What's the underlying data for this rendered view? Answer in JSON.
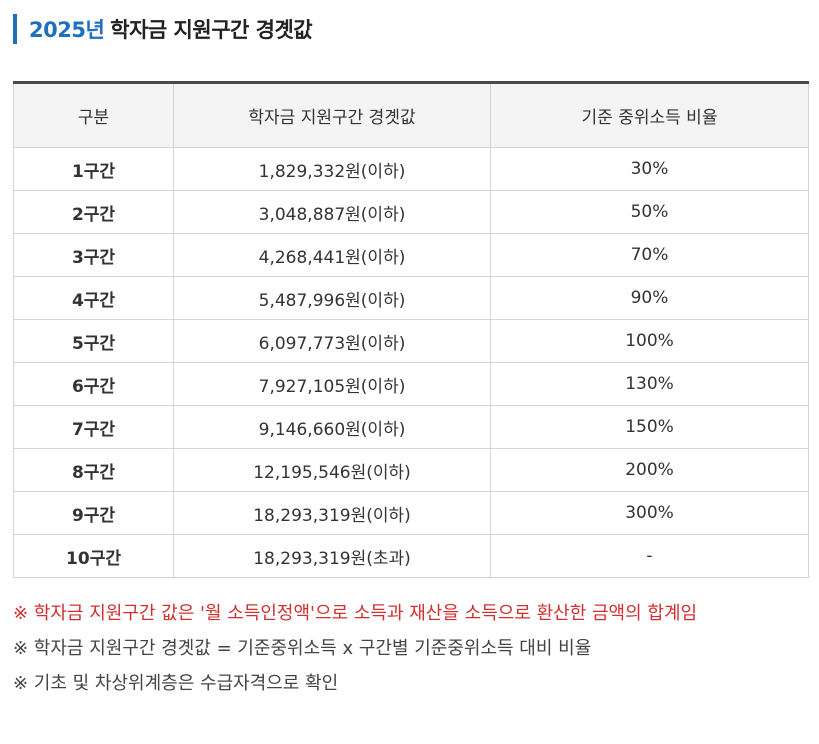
{
  "title": {
    "year": "2025년",
    "text": "학자금 지원구간 경곗값"
  },
  "table": {
    "headers": [
      "구분",
      "학자금 지원구간 경곗값",
      "기준 중위소득 비율"
    ],
    "rows": [
      {
        "segment": "1구간",
        "amount": "1,829,332원(이하)",
        "ratio": "30%"
      },
      {
        "segment": "2구간",
        "amount": "3,048,887원(이하)",
        "ratio": "50%"
      },
      {
        "segment": "3구간",
        "amount": "4,268,441원(이하)",
        "ratio": "70%"
      },
      {
        "segment": "4구간",
        "amount": "5,487,996원(이하)",
        "ratio": "90%"
      },
      {
        "segment": "5구간",
        "amount": "6,097,773원(이하)",
        "ratio": "100%"
      },
      {
        "segment": "6구간",
        "amount": "7,927,105원(이하)",
        "ratio": "130%"
      },
      {
        "segment": "7구간",
        "amount": "9,146,660원(이하)",
        "ratio": "150%"
      },
      {
        "segment": "8구간",
        "amount": "12,195,546원(이하)",
        "ratio": "200%"
      },
      {
        "segment": "9구간",
        "amount": "18,293,319원(이하)",
        "ratio": "300%"
      },
      {
        "segment": "10구간",
        "amount": "18,293,319원(초과)",
        "ratio": "-"
      }
    ]
  },
  "notes": [
    "※ 학자금 지원구간 값은 '월 소득인정액'으로 소득과 재산을 소득으로 환산한 금액의 합계임",
    "※ 학자금 지원구간 경곗값 = 기준중위소득 x 구간별 기준중위소득 대비 비율",
    "※ 기초 및 차상위계층은 수급자격으로 확인"
  ],
  "colors": {
    "accent": "#1f6fbf",
    "note_highlight": "#d32f2f",
    "header_bg": "#f4f4f4"
  }
}
